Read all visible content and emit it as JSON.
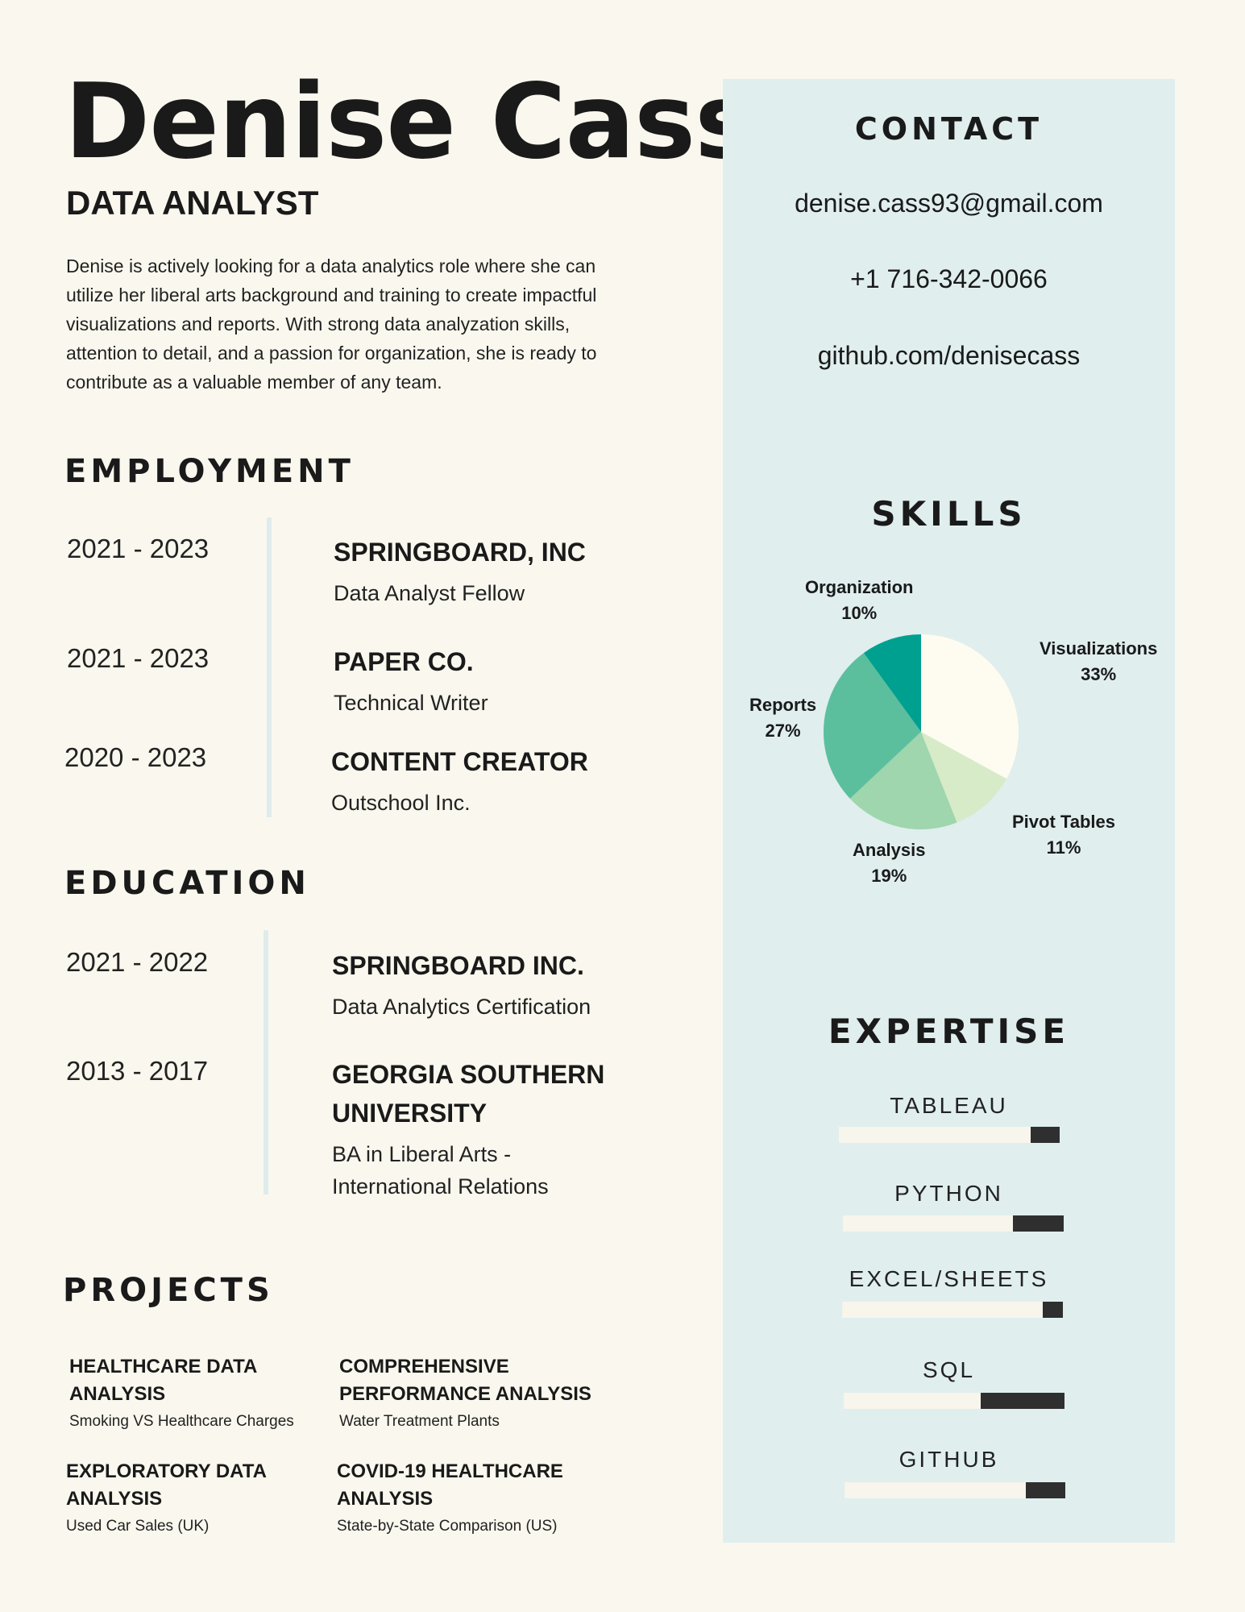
{
  "header": {
    "name": "Denise Cass",
    "role": "DATA ANALYST",
    "summary": "Denise is actively looking for a data analytics role where she can utilize her liberal arts background and training to create impactful visualizations and reports. With strong data analyzation skills, attention to detail, and a passion for organization, she is ready to contribute as a valuable member of any team."
  },
  "employment": {
    "heading": "EMPLOYMENT",
    "items": [
      {
        "dates": "2021 - 2023",
        "title": "SPRINGBOARD, INC",
        "subtitle": "Data Analyst Fellow"
      },
      {
        "dates": "2021 - 2023",
        "title": "PAPER CO.",
        "subtitle": "Technical Writer"
      },
      {
        "dates": "2020 - 2023",
        "title": "CONTENT CREATOR",
        "subtitle": "Outschool Inc."
      }
    ]
  },
  "education": {
    "heading": "EDUCATION",
    "items": [
      {
        "dates": "2021 - 2022",
        "title_lines": [
          "SPRINGBOARD INC."
        ],
        "subtitle_lines": [
          "Data Analytics Certification"
        ]
      },
      {
        "dates": "2013 - 2017",
        "title_lines": [
          "GEORGIA SOUTHERN",
          "UNIVERSITY"
        ],
        "subtitle_lines": [
          "BA in Liberal Arts -",
          "International Relations"
        ]
      }
    ]
  },
  "projects": {
    "heading": "PROJECTS",
    "items": [
      {
        "title_lines": [
          "HEALTHCARE DATA",
          "ANALYSIS"
        ],
        "subtitle": "Smoking VS Healthcare Charges"
      },
      {
        "title_lines": [
          "COMPREHENSIVE",
          "PERFORMANCE ANALYSIS"
        ],
        "subtitle": "Water Treatment Plants"
      },
      {
        "title_lines": [
          "EXPLORATORY DATA",
          "ANALYSIS"
        ],
        "subtitle": "Used Car Sales (UK)"
      },
      {
        "title_lines": [
          "COVID-19 HEALTHCARE",
          "ANALYSIS"
        ],
        "subtitle": "State-by-State Comparison  (US)"
      }
    ]
  },
  "contact": {
    "heading": "CONTACT",
    "email": "denise.cass93@gmail.com",
    "phone": "+1 716-342-0066",
    "github": "github.com/denisecass"
  },
  "skills": {
    "heading": "SKILLS"
  },
  "chart_data": {
    "type": "pie",
    "title": "",
    "slices": [
      {
        "label": "Visualizations",
        "value": 33,
        "value_label": "33%",
        "color": "#fefcf0"
      },
      {
        "label": "Pivot Tables",
        "value": 11,
        "value_label": "11%",
        "color": "#d7ebc9"
      },
      {
        "label": "Analysis",
        "value": 19,
        "value_label": "19%",
        "color": "#9fd6ad"
      },
      {
        "label": "Reports",
        "value": 27,
        "value_label": "27%",
        "color": "#5bbf9d"
      },
      {
        "label": "Organization",
        "value": 10,
        "value_label": "10%",
        "color": "#00a090"
      }
    ]
  },
  "expertise": {
    "heading": "EXPERTISE",
    "items": [
      {
        "label": "TABLEAU",
        "level": 0.13
      },
      {
        "label": "PYTHON",
        "level": 0.23
      },
      {
        "label": "EXCEL/SHEETS",
        "level": 0.09
      },
      {
        "label": "SQL",
        "level": 0.38
      },
      {
        "label": "GITHUB",
        "level": 0.18
      }
    ]
  },
  "colors": {
    "background": "#faf8ee",
    "sidebar": "#e0eeee",
    "timeline_line": "#dfeced",
    "bar_track": "#f7f5ec",
    "bar_fill": "#2f2f2f"
  }
}
